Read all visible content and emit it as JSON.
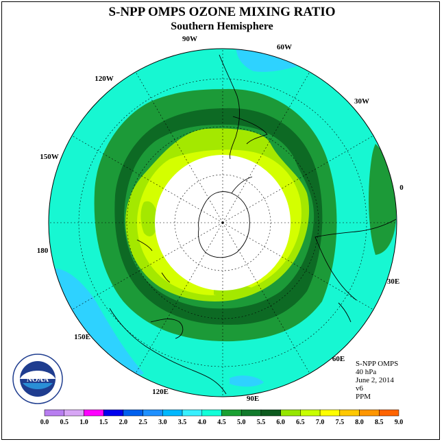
{
  "title": "S-NPP OMPS OZONE MIXING RATIO",
  "subtitle": "Southern Hemisphere",
  "longitude_labels": [
    "90W",
    "60W",
    "120W",
    "30W",
    "150W",
    "0",
    "180",
    "30E",
    "150E",
    "60E",
    "120E",
    "90E"
  ],
  "info": {
    "instrument": "S-NPP OMPS",
    "pressure": "40 hPa",
    "date": "June 2, 2014",
    "version": "v6",
    "units": "PPM"
  },
  "logo": {
    "text": "NOAA",
    "ring_text": "NATIONAL OCEANIC AND ATMOSPHERIC ADMINISTRATION · U.S. DEPARTMENT OF COMMERCE"
  },
  "colorbar": {
    "ticks": [
      "0.0",
      "0.5",
      "1.0",
      "1.5",
      "2.0",
      "2.5",
      "3.0",
      "3.5",
      "4.0",
      "4.5",
      "5.0",
      "5.5",
      "6.0",
      "6.5",
      "7.0",
      "7.5",
      "8.0",
      "8.5",
      "9.0"
    ],
    "colors": [
      "#b87ef0",
      "#d7a6f5",
      "#ff00ff",
      "#0000ee",
      "#0060ee",
      "#1e90ff",
      "#00b8ff",
      "#38f0ff",
      "#12ffd8",
      "#1aa032",
      "#117a2b",
      "#0c5a1e",
      "#96e600",
      "#c8ff00",
      "#ffff00",
      "#ffc800",
      "#ff9600",
      "#ff6400",
      "#ff0000",
      "#8b5a3c"
    ]
  },
  "map": {
    "projection": "south polar stereographic",
    "pole_gap": "no data within about 60S",
    "dominant_band": "4.0-5.5 ppm ring around 60S",
    "colors": {
      "ocean_fill": "#17f7d2",
      "low_blue": "#2ed2ff",
      "ring_mid": "#1c9a38",
      "ring_dark": "#0d6a24",
      "ring_light": "#a4e800",
      "ring_yellow": "#d4ff00",
      "coast": "#000000",
      "no_data": "#ffffff"
    }
  }
}
